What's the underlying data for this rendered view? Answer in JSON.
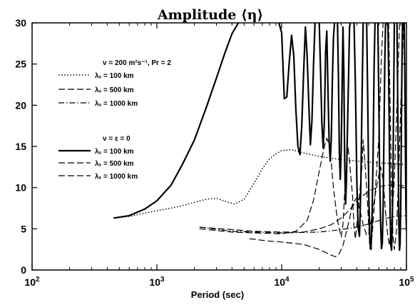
{
  "chart_data": {
    "type": "line",
    "title": "Amplitude ⟨η⟩",
    "xlabel": "Period (sec)",
    "ylabel": "",
    "x_scale": "log",
    "xlim": [
      100,
      100000
    ],
    "ylim": [
      0,
      30
    ],
    "x_ticks": [
      {
        "value": 100,
        "base": "10",
        "exp": "2"
      },
      {
        "value": 1000,
        "base": "10",
        "exp": "3"
      },
      {
        "value": 10000,
        "base": "10",
        "exp": "4"
      },
      {
        "value": 100000,
        "base": "10",
        "exp": "5"
      }
    ],
    "y_ticks": [
      0,
      5,
      10,
      15,
      20,
      25,
      30
    ],
    "legend": [
      {
        "heading": "ν = 200 m²s⁻¹, Pr = 2",
        "entries": [
          "λₓ = 100 km",
          "λₓ = 500 km",
          "λₓ = 1000 km"
        ]
      },
      {
        "heading": "ν = ε = 0",
        "entries": [
          "λₓ = 100 km",
          "λₓ = 500 km",
          "λₓ = 1000 km"
        ]
      }
    ],
    "series": [
      {
        "group": 0,
        "style": "dotted",
        "points": [
          [
            450,
            6.3
          ],
          [
            600,
            6.5
          ],
          [
            800,
            6.9
          ],
          [
            1000,
            7.2
          ],
          [
            1500,
            7.7
          ],
          [
            2000,
            8.2
          ],
          [
            2500,
            8.6
          ],
          [
            3000,
            8.7
          ],
          [
            3600,
            8.3
          ],
          [
            4200,
            8.0
          ],
          [
            5000,
            8.6
          ],
          [
            6000,
            10.5
          ],
          [
            7000,
            12.3
          ],
          [
            8000,
            13.5
          ],
          [
            9000,
            14.1
          ],
          [
            10000,
            14.5
          ],
          [
            12000,
            14.6
          ],
          [
            15000,
            14.2
          ],
          [
            20000,
            13.8
          ],
          [
            30000,
            13.4
          ],
          [
            50000,
            13.1
          ],
          [
            100000,
            12.8
          ]
        ]
      },
      {
        "group": 0,
        "style": "dashed",
        "points": [
          [
            2200,
            5.2
          ],
          [
            4000,
            4.9
          ],
          [
            6000,
            4.7
          ],
          [
            10000,
            4.6
          ],
          [
            15000,
            4.6
          ],
          [
            20000,
            5.0
          ],
          [
            25000,
            5.5
          ],
          [
            30000,
            6.3
          ],
          [
            35000,
            7.3
          ],
          [
            40000,
            8.4
          ],
          [
            50000,
            9.6
          ],
          [
            60000,
            10.1
          ],
          [
            70000,
            10.3
          ],
          [
            80000,
            10.3
          ],
          [
            100000,
            10.2
          ]
        ]
      },
      {
        "group": 0,
        "style": "dashdot",
        "points": [
          [
            2200,
            5.2
          ],
          [
            4000,
            4.7
          ],
          [
            6000,
            4.6
          ],
          [
            10000,
            4.5
          ],
          [
            20000,
            4.6
          ],
          [
            30000,
            4.9
          ],
          [
            40000,
            5.2
          ],
          [
            50000,
            5.6
          ],
          [
            60000,
            6.0
          ],
          [
            70000,
            6.3
          ],
          [
            80000,
            6.5
          ],
          [
            100000,
            6.6
          ]
        ]
      },
      {
        "group": 1,
        "style": "solid",
        "points": [
          [
            450,
            6.3
          ],
          [
            600,
            6.6
          ],
          [
            800,
            7.4
          ],
          [
            1000,
            8.4
          ],
          [
            1300,
            10.3
          ],
          [
            1600,
            12.8
          ],
          [
            2000,
            15.8
          ],
          [
            2500,
            19.8
          ],
          [
            3000,
            23.3
          ],
          [
            3500,
            26.3
          ],
          [
            4000,
            28.7
          ],
          [
            4500,
            30
          ],
          [
            null,
            null
          ],
          [
            9500,
            30
          ],
          [
            10000,
            28.8
          ],
          [
            10500,
            20.8
          ],
          [
            11000,
            21.0
          ],
          [
            11500,
            25.2
          ],
          [
            12000,
            28.5
          ],
          [
            12500,
            26.0
          ],
          [
            13000,
            19.5
          ],
          [
            13500,
            15.0
          ],
          [
            14000,
            14.0
          ],
          [
            14500,
            17.5
          ],
          [
            15000,
            24.0
          ],
          [
            15500,
            29.5
          ],
          [
            16000,
            26.0
          ],
          [
            16500,
            20.0
          ],
          [
            17000,
            15.2
          ],
          [
            17500,
            18.2
          ],
          [
            18000,
            25.0
          ],
          [
            18500,
            30
          ],
          [
            null,
            null
          ],
          [
            20000,
            30
          ],
          [
            20500,
            24.0
          ],
          [
            21000,
            17.8
          ],
          [
            21500,
            14.8
          ],
          [
            22000,
            18.0
          ],
          [
            22500,
            26.5
          ],
          [
            23000,
            29.0
          ],
          [
            23500,
            22.0
          ],
          [
            24000,
            15.8
          ],
          [
            24500,
            13.2
          ],
          [
            25000,
            16.0
          ],
          [
            25500,
            23.0
          ],
          [
            26000,
            28.2
          ],
          [
            26500,
            30
          ],
          [
            null,
            null
          ],
          [
            28000,
            30
          ],
          [
            28500,
            23.5
          ],
          [
            29000,
            14.2
          ],
          [
            29500,
            11.0
          ],
          [
            30000,
            14.5
          ],
          [
            30500,
            22.5
          ],
          [
            31000,
            29.5
          ],
          [
            31500,
            24.0
          ],
          [
            32000,
            13.0
          ],
          [
            32500,
            8.0
          ],
          [
            33000,
            10.5
          ],
          [
            34000,
            20.0
          ],
          [
            35000,
            29.5
          ],
          [
            35500,
            30
          ],
          [
            null,
            null
          ],
          [
            38000,
            30
          ],
          [
            39000,
            22.5
          ],
          [
            40000,
            11.0
          ],
          [
            41000,
            5.2
          ],
          [
            42000,
            4.1
          ],
          [
            43000,
            9.5
          ],
          [
            44000,
            20.0
          ],
          [
            45000,
            30
          ],
          [
            null,
            null
          ],
          [
            48000,
            30
          ],
          [
            49000,
            20.0
          ],
          [
            50000,
            8.5
          ],
          [
            51000,
            3.2
          ],
          [
            52000,
            2.5
          ],
          [
            53000,
            6.0
          ],
          [
            54000,
            14.0
          ],
          [
            55000,
            24.5
          ],
          [
            56000,
            30
          ],
          [
            null,
            null
          ],
          [
            59000,
            30
          ],
          [
            60000,
            21.0
          ],
          [
            61000,
            11.5
          ],
          [
            62000,
            6.0
          ],
          [
            63000,
            2.6
          ],
          [
            64000,
            3.2
          ],
          [
            65000,
            7.5
          ],
          [
            66000,
            16.0
          ],
          [
            67000,
            25.0
          ],
          [
            68000,
            30
          ],
          [
            null,
            null
          ],
          [
            71000,
            30
          ],
          [
            72000,
            24.0
          ],
          [
            73000,
            15.0
          ],
          [
            74000,
            7.0
          ],
          [
            75000,
            3.0
          ],
          [
            76000,
            2.4
          ],
          [
            77000,
            5.5
          ],
          [
            78000,
            12.0
          ],
          [
            79000,
            21.0
          ],
          [
            80000,
            30
          ],
          [
            null,
            null
          ],
          [
            84000,
            30
          ],
          [
            85000,
            22.0
          ],
          [
            86000,
            13.0
          ],
          [
            87000,
            5.5
          ],
          [
            88000,
            2.4
          ],
          [
            89000,
            3.2
          ],
          [
            90000,
            8.0
          ],
          [
            91000,
            16.0
          ],
          [
            92000,
            25.0
          ],
          [
            93000,
            30
          ],
          [
            null,
            null
          ],
          [
            96000,
            30
          ],
          [
            97000,
            24.0
          ],
          [
            98000,
            15.0
          ],
          [
            99000,
            8.0
          ],
          [
            100000,
            4.8
          ]
        ]
      },
      {
        "group": 1,
        "style": "dashed",
        "points": [
          [
            2200,
            5.0
          ],
          [
            4000,
            4.6
          ],
          [
            6000,
            4.5
          ],
          [
            10000,
            4.4
          ],
          [
            13000,
            4.7
          ],
          [
            16000,
            6.0
          ],
          [
            18000,
            8.5
          ],
          [
            20000,
            12.0
          ],
          [
            22000,
            15.0
          ],
          [
            23000,
            16.0
          ],
          [
            24000,
            15.2
          ],
          [
            25000,
            13.0
          ],
          [
            26000,
            10.0
          ],
          [
            28000,
            6.0
          ],
          [
            30000,
            4.0
          ],
          [
            31000,
            5.5
          ],
          [
            32000,
            9.5
          ],
          [
            34000,
            15.0
          ],
          [
            35000,
            13.2
          ],
          [
            37000,
            9.0
          ],
          [
            38000,
            5.2
          ],
          [
            39000,
            3.8
          ],
          [
            40000,
            5.5
          ],
          [
            42000,
            9.0
          ],
          [
            44000,
            12.5
          ],
          [
            45000,
            15.8
          ],
          [
            46000,
            14.0
          ],
          [
            48000,
            10.0
          ],
          [
            50000,
            5.0
          ],
          [
            51000,
            2.6
          ],
          [
            53000,
            4.0
          ],
          [
            56000,
            9.0
          ],
          [
            60000,
            16.0
          ],
          [
            63000,
            26.0
          ],
          [
            65000,
            30
          ],
          [
            null,
            null
          ],
          [
            72000,
            30
          ],
          [
            74000,
            20.0
          ],
          [
            76000,
            10.0
          ],
          [
            78000,
            4.0
          ],
          [
            80000,
            2.5
          ],
          [
            83000,
            4.5
          ],
          [
            86000,
            10.0
          ],
          [
            90000,
            20.0
          ],
          [
            95000,
            30
          ]
        ]
      },
      {
        "group": 1,
        "style": "dashed",
        "points": [
          [
            5500,
            3.8
          ],
          [
            8000,
            3.5
          ],
          [
            10000,
            3.4
          ],
          [
            15000,
            3.1
          ],
          [
            20000,
            2.5
          ],
          [
            25000,
            1.8
          ],
          [
            27000,
            1.6
          ],
          [
            29000,
            2.0
          ],
          [
            31000,
            3.0
          ],
          [
            33000,
            4.6
          ],
          [
            35000,
            6.2
          ],
          [
            37000,
            8.0
          ],
          [
            40000,
            8.8
          ],
          [
            42000,
            7.5
          ],
          [
            45000,
            5.5
          ],
          [
            48000,
            4.2
          ],
          [
            50000,
            4.5
          ],
          [
            53000,
            6.5
          ],
          [
            56000,
            9.0
          ],
          [
            60000,
            11.5
          ],
          [
            62000,
            12.5
          ],
          [
            65000,
            11.0
          ],
          [
            68000,
            7.0
          ],
          [
            71000,
            4.0
          ],
          [
            73000,
            3.0
          ],
          [
            76000,
            5.5
          ],
          [
            80000,
            11.0
          ],
          [
            84000,
            20.0
          ],
          [
            88000,
            30
          ]
        ]
      }
    ]
  }
}
